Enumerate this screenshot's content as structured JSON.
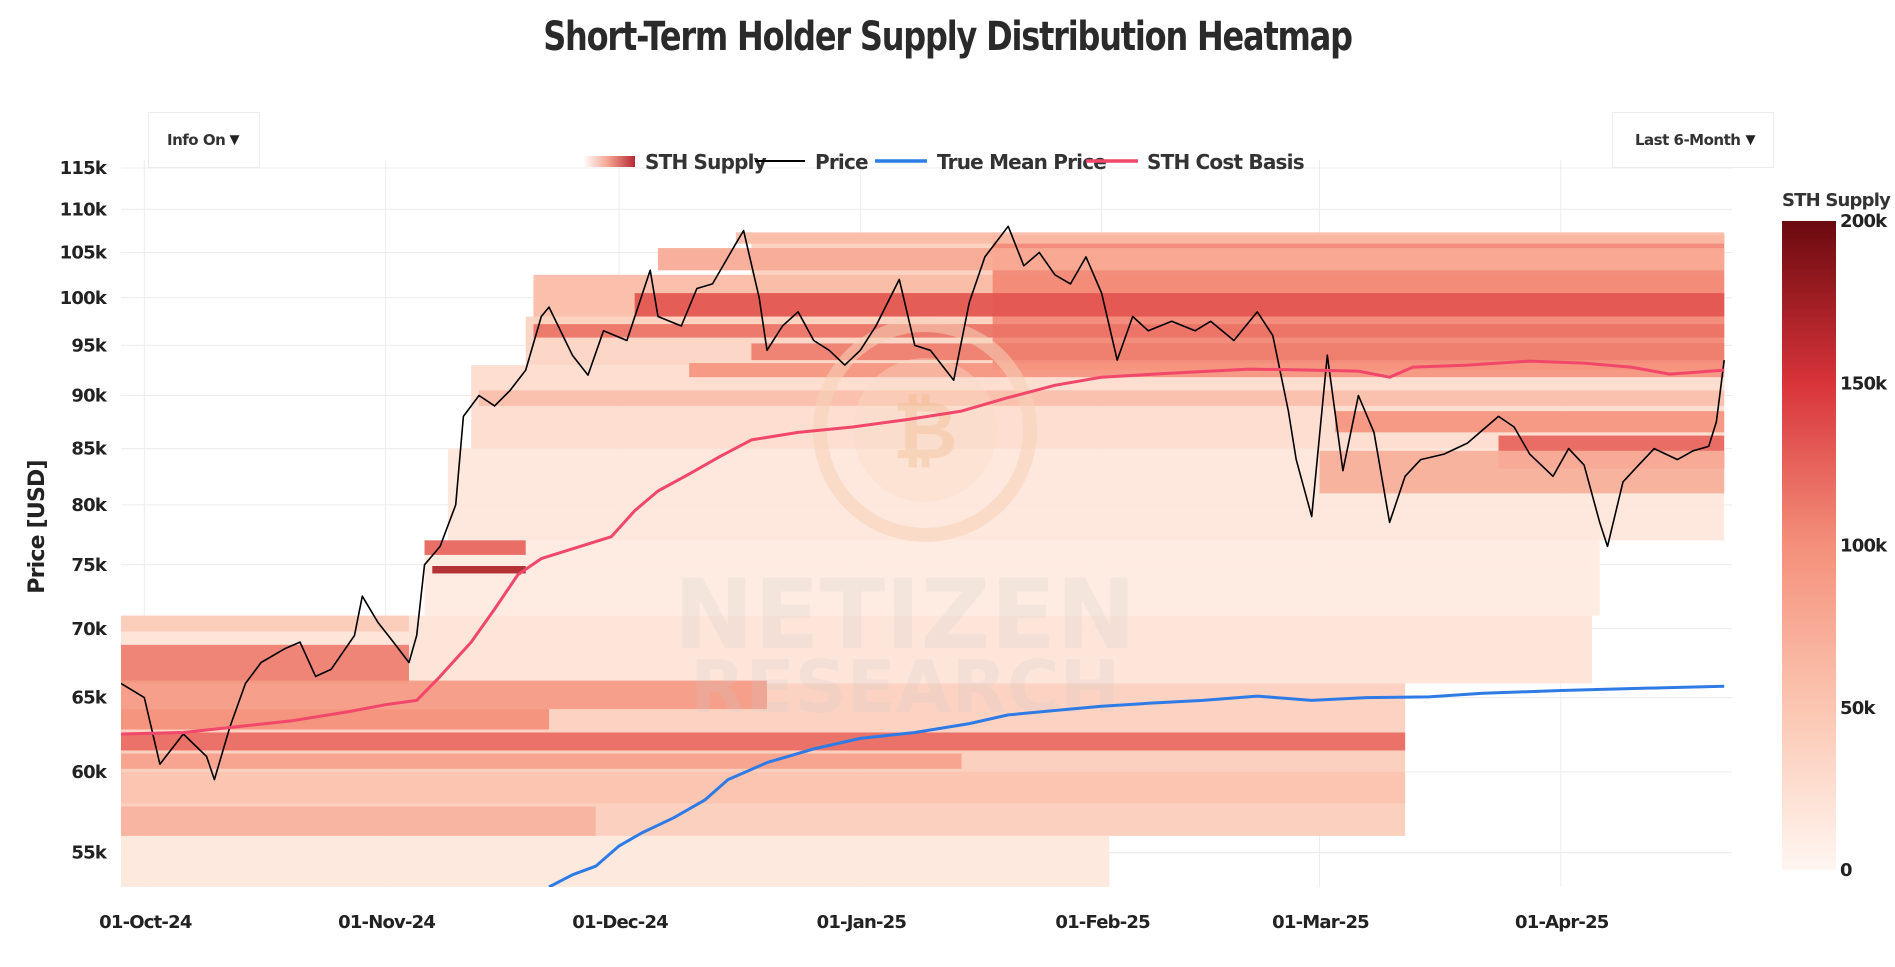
{
  "title": "Short-Term Holder Supply Distribution Heatmap",
  "controls": {
    "info_toggle": "Info On",
    "range_select": "Last 6-Month",
    "caret": "▼"
  },
  "watermark": [
    "NETIZEN",
    "RESEARCH"
  ],
  "colors": {
    "price": "#000000",
    "true_mean": "#2f7be6",
    "sth_cost": "#f0476a",
    "heat_low": "#fff6f1",
    "heat_mid": "#f4907b",
    "heat_high": "#c81e1e",
    "heat_max": "#6a0a0f",
    "grid": "#ececec"
  },
  "chart_data": {
    "type": "heatmap",
    "title": "Short-Term Holder Supply Distribution Heatmap",
    "ylabel": "Price [USD]",
    "xlabel": "",
    "y_scale": "log",
    "ylim": [
      53000,
      116000
    ],
    "xlim": [
      "2024-09-28",
      "2025-04-23"
    ],
    "x_ticks": [
      {
        "date": "2024-10-01",
        "label": "01-Oct-24"
      },
      {
        "date": "2024-11-01",
        "label": "01-Nov-24"
      },
      {
        "date": "2024-12-01",
        "label": "01-Dec-24"
      },
      {
        "date": "2025-01-01",
        "label": "01-Jan-25"
      },
      {
        "date": "2025-02-01",
        "label": "01-Feb-25"
      },
      {
        "date": "2025-03-01",
        "label": "01-Mar-25"
      },
      {
        "date": "2025-04-01",
        "label": "01-Apr-25"
      }
    ],
    "y_ticks": [
      {
        "v": 55000,
        "label": "55k"
      },
      {
        "v": 60000,
        "label": "60k"
      },
      {
        "v": 65000,
        "label": "65k"
      },
      {
        "v": 70000,
        "label": "70k"
      },
      {
        "v": 75000,
        "label": "75k"
      },
      {
        "v": 80000,
        "label": "80k"
      },
      {
        "v": 85000,
        "label": "85k"
      },
      {
        "v": 90000,
        "label": "90k"
      },
      {
        "v": 95000,
        "label": "95k"
      },
      {
        "v": 100000,
        "label": "100k"
      },
      {
        "v": 105000,
        "label": "105k"
      },
      {
        "v": 110000,
        "label": "110k"
      },
      {
        "v": 115000,
        "label": "115k"
      }
    ],
    "legend": [
      "STH Supply",
      "Price",
      "True Mean Price",
      "STH Cost Basis"
    ],
    "colorbar": {
      "title": "STH Supply",
      "range": [
        0,
        200000
      ],
      "ticks": [
        {
          "v": 0,
          "label": "0"
        },
        {
          "v": 50000,
          "label": "50k"
        },
        {
          "v": 100000,
          "label": "100k"
        },
        {
          "v": 150000,
          "label": "150k"
        },
        {
          "v": 200000,
          "label": "200k"
        }
      ]
    },
    "series": [
      {
        "name": "Price",
        "points": [
          [
            "2024-09-28",
            66000
          ],
          [
            "2024-10-01",
            65000
          ],
          [
            "2024-10-03",
            60500
          ],
          [
            "2024-10-06",
            62500
          ],
          [
            "2024-10-09",
            61000
          ],
          [
            "2024-10-10",
            59500
          ],
          [
            "2024-10-12",
            63000
          ],
          [
            "2024-10-14",
            66000
          ],
          [
            "2024-10-16",
            67500
          ],
          [
            "2024-10-19",
            68500
          ],
          [
            "2024-10-21",
            69000
          ],
          [
            "2024-10-23",
            66500
          ],
          [
            "2024-10-25",
            67000
          ],
          [
            "2024-10-28",
            69500
          ],
          [
            "2024-10-29",
            72500
          ],
          [
            "2024-10-31",
            70500
          ],
          [
            "2024-11-02",
            69000
          ],
          [
            "2024-11-04",
            67500
          ],
          [
            "2024-11-05",
            69500
          ],
          [
            "2024-11-06",
            75000
          ],
          [
            "2024-11-08",
            76500
          ],
          [
            "2024-11-10",
            80000
          ],
          [
            "2024-11-11",
            88000
          ],
          [
            "2024-11-13",
            90000
          ],
          [
            "2024-11-15",
            89000
          ],
          [
            "2024-11-17",
            90500
          ],
          [
            "2024-11-19",
            92500
          ],
          [
            "2024-11-21",
            98000
          ],
          [
            "2024-11-22",
            99000
          ],
          [
            "2024-11-25",
            94000
          ],
          [
            "2024-11-27",
            92000
          ],
          [
            "2024-11-29",
            96500
          ],
          [
            "2024-12-02",
            95500
          ],
          [
            "2024-12-05",
            103000
          ],
          [
            "2024-12-06",
            98000
          ],
          [
            "2024-12-09",
            97000
          ],
          [
            "2024-12-11",
            101000
          ],
          [
            "2024-12-13",
            101500
          ],
          [
            "2024-12-16",
            106000
          ],
          [
            "2024-12-17",
            107500
          ],
          [
            "2024-12-19",
            100000
          ],
          [
            "2024-12-20",
            94500
          ],
          [
            "2024-12-22",
            97000
          ],
          [
            "2024-12-24",
            98500
          ],
          [
            "2024-12-26",
            95500
          ],
          [
            "2024-12-28",
            94500
          ],
          [
            "2024-12-30",
            93000
          ],
          [
            "2025-01-01",
            94500
          ],
          [
            "2025-01-03",
            97000
          ],
          [
            "2025-01-06",
            102000
          ],
          [
            "2025-01-08",
            95000
          ],
          [
            "2025-01-10",
            94500
          ],
          [
            "2025-01-13",
            91500
          ],
          [
            "2025-01-15",
            99500
          ],
          [
            "2025-01-17",
            104500
          ],
          [
            "2025-01-20",
            108000
          ],
          [
            "2025-01-22",
            103500
          ],
          [
            "2025-01-24",
            105000
          ],
          [
            "2025-01-26",
            102500
          ],
          [
            "2025-01-28",
            101500
          ],
          [
            "2025-01-30",
            104500
          ],
          [
            "2025-02-01",
            100500
          ],
          [
            "2025-02-03",
            93500
          ],
          [
            "2025-02-05",
            98000
          ],
          [
            "2025-02-07",
            96500
          ],
          [
            "2025-02-10",
            97500
          ],
          [
            "2025-02-13",
            96500
          ],
          [
            "2025-02-15",
            97500
          ],
          [
            "2025-02-18",
            95500
          ],
          [
            "2025-02-21",
            98500
          ],
          [
            "2025-02-23",
            96000
          ],
          [
            "2025-02-25",
            88500
          ],
          [
            "2025-02-26",
            84000
          ],
          [
            "2025-02-28",
            79000
          ],
          [
            "2025-03-02",
            94000
          ],
          [
            "2025-03-04",
            83000
          ],
          [
            "2025-03-06",
            90000
          ],
          [
            "2025-03-08",
            86500
          ],
          [
            "2025-03-10",
            78500
          ],
          [
            "2025-03-12",
            82500
          ],
          [
            "2025-03-14",
            84000
          ],
          [
            "2025-03-17",
            84500
          ],
          [
            "2025-03-20",
            85500
          ],
          [
            "2025-03-24",
            88000
          ],
          [
            "2025-03-26",
            87000
          ],
          [
            "2025-03-28",
            84500
          ],
          [
            "2025-03-31",
            82500
          ],
          [
            "2025-04-02",
            85000
          ],
          [
            "2025-04-04",
            83500
          ],
          [
            "2025-04-06",
            78500
          ],
          [
            "2025-04-07",
            76500
          ],
          [
            "2025-04-09",
            82000
          ],
          [
            "2025-04-11",
            83500
          ],
          [
            "2025-04-13",
            85000
          ],
          [
            "2025-04-16",
            84000
          ],
          [
            "2025-04-18",
            84800
          ],
          [
            "2025-04-20",
            85200
          ],
          [
            "2025-04-21",
            87500
          ],
          [
            "2025-04-22",
            93500
          ]
        ]
      },
      {
        "name": "True Mean Price",
        "points": [
          [
            "2024-11-22",
            53000
          ],
          [
            "2024-11-25",
            53700
          ],
          [
            "2024-11-28",
            54200
          ],
          [
            "2024-12-01",
            55400
          ],
          [
            "2024-12-04",
            56200
          ],
          [
            "2024-12-08",
            57100
          ],
          [
            "2024-12-12",
            58200
          ],
          [
            "2024-12-15",
            59500
          ],
          [
            "2024-12-20",
            60600
          ],
          [
            "2024-12-26",
            61500
          ],
          [
            "2025-01-01",
            62200
          ],
          [
            "2025-01-08",
            62600
          ],
          [
            "2025-01-15",
            63200
          ],
          [
            "2025-01-20",
            63800
          ],
          [
            "2025-01-26",
            64100
          ],
          [
            "2025-02-01",
            64400
          ],
          [
            "2025-02-07",
            64600
          ],
          [
            "2025-02-14",
            64800
          ],
          [
            "2025-02-21",
            65100
          ],
          [
            "2025-02-28",
            64800
          ],
          [
            "2025-03-07",
            65000
          ],
          [
            "2025-03-15",
            65050
          ],
          [
            "2025-03-22",
            65300
          ],
          [
            "2025-04-01",
            65500
          ],
          [
            "2025-04-08",
            65600
          ],
          [
            "2025-04-15",
            65700
          ],
          [
            "2025-04-22",
            65800
          ]
        ]
      },
      {
        "name": "STH Cost Basis",
        "points": [
          [
            "2024-09-28",
            62500
          ],
          [
            "2024-10-06",
            62600
          ],
          [
            "2024-10-13",
            63000
          ],
          [
            "2024-10-20",
            63400
          ],
          [
            "2024-10-27",
            64000
          ],
          [
            "2024-11-01",
            64500
          ],
          [
            "2024-11-05",
            64800
          ],
          [
            "2024-11-08",
            66500
          ],
          [
            "2024-11-12",
            69000
          ],
          [
            "2024-11-15",
            71500
          ],
          [
            "2024-11-18",
            74200
          ],
          [
            "2024-11-21",
            75500
          ],
          [
            "2024-11-26",
            76500
          ],
          [
            "2024-11-30",
            77300
          ],
          [
            "2024-12-03",
            79500
          ],
          [
            "2024-12-06",
            81200
          ],
          [
            "2024-12-10",
            82700
          ],
          [
            "2024-12-14",
            84300
          ],
          [
            "2024-12-18",
            85800
          ],
          [
            "2024-12-24",
            86500
          ],
          [
            "2024-12-31",
            87000
          ],
          [
            "2025-01-07",
            87700
          ],
          [
            "2025-01-14",
            88500
          ],
          [
            "2025-01-20",
            89800
          ],
          [
            "2025-01-26",
            91000
          ],
          [
            "2025-02-01",
            91800
          ],
          [
            "2025-02-10",
            92200
          ],
          [
            "2025-02-20",
            92600
          ],
          [
            "2025-02-28",
            92500
          ],
          [
            "2025-03-06",
            92400
          ],
          [
            "2025-03-10",
            91800
          ],
          [
            "2025-03-13",
            92800
          ],
          [
            "2025-03-20",
            93000
          ],
          [
            "2025-03-28",
            93400
          ],
          [
            "2025-04-04",
            93200
          ],
          [
            "2025-04-10",
            92800
          ],
          [
            "2025-04-15",
            92100
          ],
          [
            "2025-04-22",
            92500
          ]
        ]
      }
    ],
    "bands": [
      {
        "y0": 97000,
        "y1": 107000,
        "x0": "2024-12-18",
        "x1": "2025-04-22",
        "level": 0.2
      },
      {
        "y0": 97000,
        "y1": 102500,
        "x0": "2024-11-20",
        "x1": "2025-04-22",
        "level": 0.3
      },
      {
        "y0": 93000,
        "y1": 98000,
        "x0": "2024-11-19",
        "x1": "2025-04-22",
        "level": 0.18
      },
      {
        "y0": 85000,
        "y1": 93000,
        "x0": "2024-11-12",
        "x1": "2025-04-22",
        "level": 0.14
      },
      {
        "y0": 77000,
        "y1": 85000,
        "x0": "2024-11-09",
        "x1": "2025-04-22",
        "level": 0.09
      },
      {
        "y0": 71000,
        "y1": 77000,
        "x0": "2024-11-06",
        "x1": "2025-04-06",
        "level": 0.07
      },
      {
        "y0": 66000,
        "y1": 71000,
        "x0": "2024-09-28",
        "x1": "2025-04-05",
        "level": 0.1
      },
      {
        "y0": 62000,
        "y1": 66000,
        "x0": "2024-09-28",
        "x1": "2025-03-12",
        "level": 0.2
      },
      {
        "y0": 56000,
        "y1": 62000,
        "x0": "2024-09-28",
        "x1": "2025-03-12",
        "level": 0.22
      },
      {
        "y0": 53000,
        "y1": 56000,
        "x0": "2024-09-28",
        "x1": "2025-02-02",
        "level": 0.08
      },
      {
        "y0": 92500,
        "y1": 107000,
        "x0": "2025-01-18",
        "x1": "2025-04-22",
        "level": 0.52
      },
      {
        "y0": 98000,
        "y1": 100500,
        "x0": "2024-12-03",
        "x1": "2025-04-22",
        "level": 0.66
      },
      {
        "y0": 95800,
        "y1": 97200,
        "x0": "2024-11-20",
        "x1": "2025-04-22",
        "level": 0.58
      },
      {
        "y0": 93500,
        "y1": 95200,
        "x0": "2024-12-18",
        "x1": "2025-04-22",
        "level": 0.55
      },
      {
        "y0": 91800,
        "y1": 93200,
        "x0": "2024-12-10",
        "x1": "2025-04-22",
        "level": 0.48
      },
      {
        "y0": 103000,
        "y1": 105500,
        "x0": "2024-12-06",
        "x1": "2025-04-22",
        "level": 0.38
      },
      {
        "y0": 106000,
        "y1": 107300,
        "x0": "2024-12-16",
        "x1": "2025-04-22",
        "level": 0.3
      },
      {
        "y0": 89000,
        "y1": 90500,
        "x0": "2024-11-13",
        "x1": "2025-04-22",
        "level": 0.28
      },
      {
        "y0": 86500,
        "y1": 88500,
        "x0": "2025-03-03",
        "x1": "2025-04-22",
        "level": 0.48
      },
      {
        "y0": 83200,
        "y1": 86200,
        "x0": "2025-03-24",
        "x1": "2025-04-22",
        "level": 0.62
      },
      {
        "y0": 81000,
        "y1": 84800,
        "x0": "2025-03-01",
        "x1": "2025-04-22",
        "level": 0.36
      },
      {
        "y0": 75800,
        "y1": 77000,
        "x0": "2024-11-06",
        "x1": "2024-11-19",
        "level": 0.62
      },
      {
        "y0": 74300,
        "y1": 74900,
        "x0": "2024-11-07",
        "x1": "2024-11-19",
        "level": 0.85
      },
      {
        "y0": 66000,
        "y1": 68800,
        "x0": "2024-09-28",
        "x1": "2024-11-04",
        "level": 0.55
      },
      {
        "y0": 64200,
        "y1": 66200,
        "x0": "2024-09-28",
        "x1": "2024-12-20",
        "level": 0.45
      },
      {
        "y0": 62800,
        "y1": 64200,
        "x0": "2024-09-28",
        "x1": "2024-11-22",
        "level": 0.5
      },
      {
        "y0": 61400,
        "y1": 62600,
        "x0": "2024-09-28",
        "x1": "2025-03-12",
        "level": 0.6
      },
      {
        "y0": 60200,
        "y1": 61200,
        "x0": "2024-09-28",
        "x1": "2025-01-14",
        "level": 0.42
      },
      {
        "y0": 58000,
        "y1": 60000,
        "x0": "2024-09-28",
        "x1": "2025-03-12",
        "level": 0.26
      },
      {
        "y0": 56000,
        "y1": 57800,
        "x0": "2024-09-28",
        "x1": "2024-11-28",
        "level": 0.34
      },
      {
        "y0": 69800,
        "y1": 71000,
        "x0": "2024-09-28",
        "x1": "2024-11-04",
        "level": 0.22
      }
    ]
  }
}
